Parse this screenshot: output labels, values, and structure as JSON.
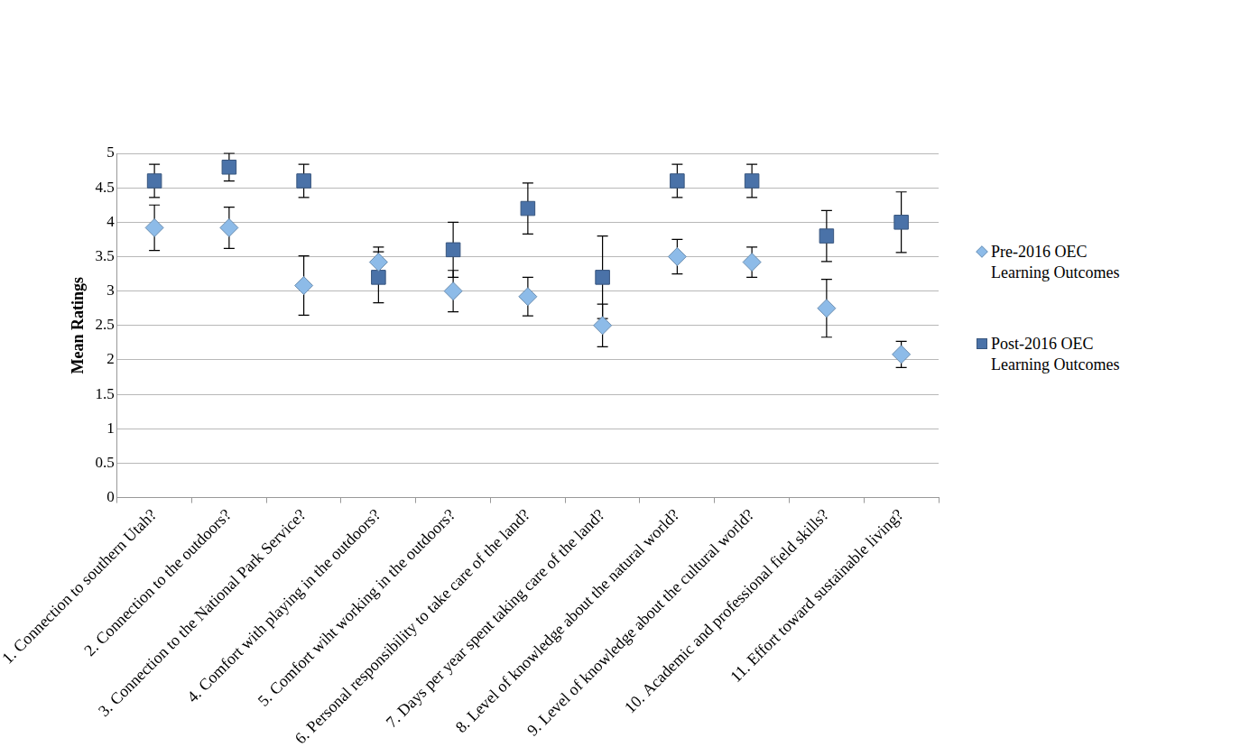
{
  "chart_data": {
    "type": "scatter",
    "categories": [
      "1. Connection to southern Utah?",
      "2. Connection to the outdoors?",
      "3. Connection to the National Park Service?",
      "4. Comfort with playing in the outdoors?",
      "5. Comfort wiht working in the outdoors?",
      "6. Personal responsibility to take care of the land?",
      "7. Days per year spent taking care of the land?",
      "8. Level of knowledge about the natural world?",
      "9. Level of knowledge about the cultural world?",
      "10. Academic and professional field skills?",
      "11. Effort toward sustainable living?"
    ],
    "y_label": "Mean Ratings",
    "ylim": [
      0,
      5
    ],
    "yticks": [
      0,
      0.5,
      1,
      1.5,
      2,
      2.5,
      3,
      3.5,
      4,
      4.5,
      5
    ],
    "grid": true,
    "legend": "right",
    "series": [
      {
        "name": "Pre-2016 OEC Learning Outcomes",
        "color": "#8dbbe8",
        "marker": "diamond",
        "values": [
          3.92,
          3.92,
          3.08,
          3.42,
          3.0,
          2.92,
          2.5,
          3.5,
          3.42,
          2.75,
          2.08
        ],
        "errors": [
          0.33,
          0.3,
          0.43,
          0.22,
          0.3,
          0.28,
          0.31,
          0.25,
          0.22,
          0.42,
          0.19
        ]
      },
      {
        "name": "Post-2016 OEC Learning Outcomes",
        "color": "#4a72a8",
        "marker": "square",
        "values": [
          4.6,
          4.8,
          4.6,
          3.2,
          3.6,
          4.2,
          3.2,
          4.6,
          4.6,
          3.8,
          4.0
        ],
        "errors": [
          0.24,
          0.2,
          0.24,
          0.37,
          0.4,
          0.37,
          0.6,
          0.24,
          0.24,
          0.37,
          0.44
        ]
      }
    ]
  }
}
